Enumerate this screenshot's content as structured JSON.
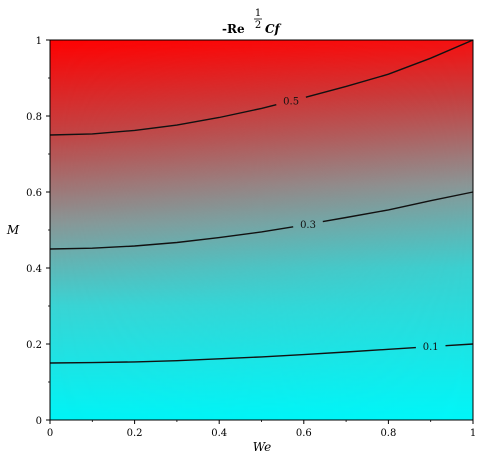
{
  "chart_data": {
    "type": "contour",
    "title": {
      "prefix": "-Re",
      "exponent_numerator": "1",
      "exponent_denominator": "2",
      "suffix": "Cf"
    },
    "xlabel": "We",
    "ylabel": "M",
    "xlim": [
      0,
      1
    ],
    "ylim": [
      0,
      1
    ],
    "x_ticks": [
      0,
      0.2,
      0.4,
      0.6,
      0.8,
      1
    ],
    "x_tick_labels": [
      "0",
      "0.2",
      "0.4",
      "0.6",
      "0.8",
      "1"
    ],
    "y_ticks": [
      0,
      0.2,
      0.4,
      0.6,
      0.8,
      1
    ],
    "y_tick_labels": [
      "0",
      "0.2",
      "0.4",
      "0.6",
      "0.8",
      "1"
    ],
    "grid": false,
    "colormap": {
      "low": "#00f2f5",
      "mid": "#8a8a8a",
      "high": "#ff0000"
    },
    "contours": [
      {
        "level_label": "0.1",
        "label_at_x": 0.9,
        "x": [
          0,
          0.1,
          0.2,
          0.3,
          0.4,
          0.5,
          0.6,
          0.7,
          0.8,
          0.9,
          1.0
        ],
        "y": [
          0.15,
          0.151,
          0.153,
          0.156,
          0.161,
          0.166,
          0.172,
          0.179,
          0.186,
          0.193,
          0.2
        ]
      },
      {
        "level_label": "0.3",
        "label_at_x": 0.61,
        "x": [
          0,
          0.1,
          0.2,
          0.3,
          0.4,
          0.5,
          0.6,
          0.7,
          0.8,
          0.9,
          1.0
        ],
        "y": [
          0.45,
          0.452,
          0.458,
          0.467,
          0.48,
          0.495,
          0.513,
          0.533,
          0.553,
          0.577,
          0.6
        ]
      },
      {
        "level_label": "0.5",
        "label_at_x": 0.57,
        "x": [
          0,
          0.1,
          0.2,
          0.3,
          0.4,
          0.5,
          0.6,
          0.7,
          0.8,
          0.9,
          1.0
        ],
        "y": [
          0.75,
          0.753,
          0.762,
          0.776,
          0.796,
          0.82,
          0.848,
          0.878,
          0.91,
          0.952,
          1.0
        ]
      }
    ]
  }
}
